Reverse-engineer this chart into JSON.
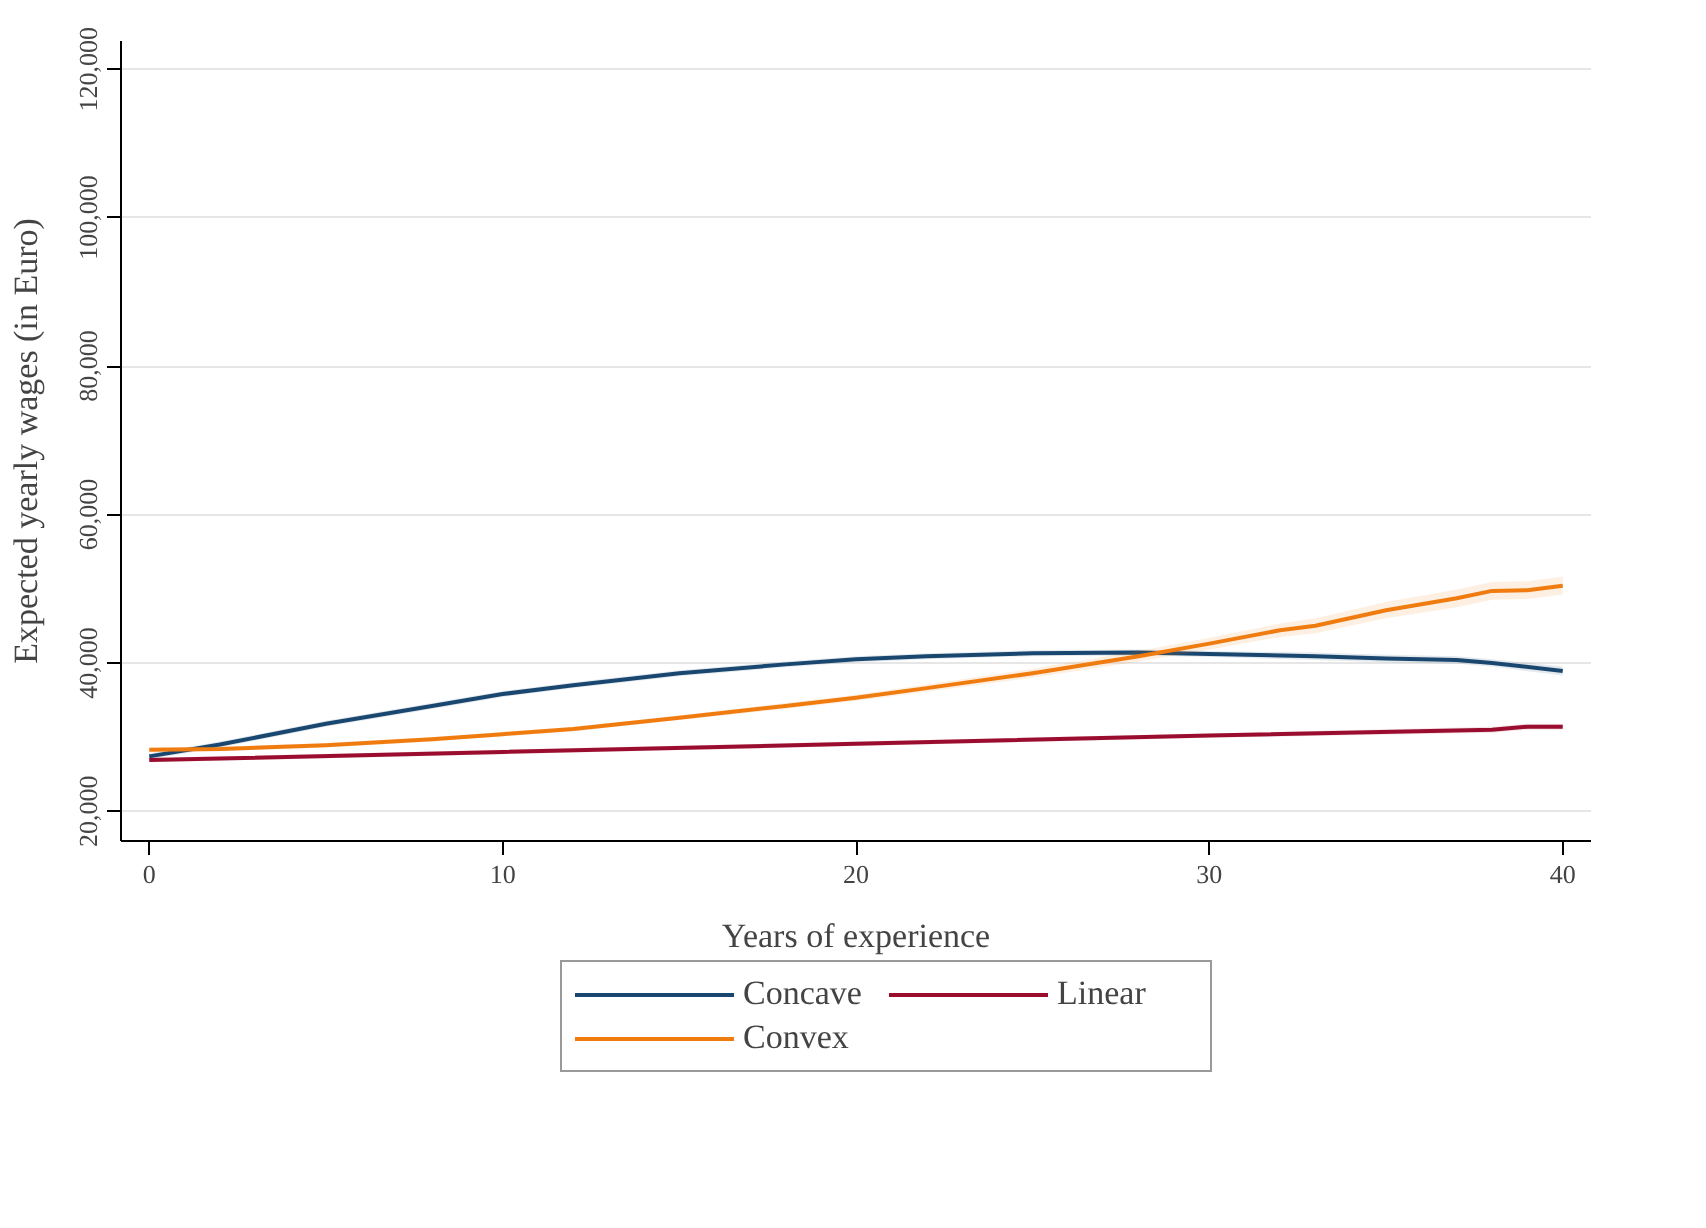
{
  "chart_data": {
    "type": "line",
    "xlabel": "Years of experience",
    "ylabel": "Expected yearly wages (in Euro)",
    "xlim": [
      -0.8,
      40.8
    ],
    "xticks": [
      0,
      10,
      20,
      30,
      40
    ],
    "ylim": [
      16000,
      123800
    ],
    "yticks": [
      {
        "value": 20000,
        "label": "20,000"
      },
      {
        "value": 40000,
        "label": "40,000"
      },
      {
        "value": 60000,
        "label": "60,000"
      },
      {
        "value": 80000,
        "label": "80,000"
      },
      {
        "value": 100000,
        "label": "100,000"
      },
      {
        "value": 120000,
        "label": "120,000"
      }
    ],
    "grid": "y",
    "legend": "bottom",
    "line_style": "solid",
    "marker": "none",
    "series": [
      {
        "name": "Concave",
        "color": "#1a476f",
        "x": [
          0,
          2,
          5,
          8,
          10,
          12,
          15,
          18,
          20,
          22,
          25,
          28,
          30,
          33,
          35,
          37,
          38,
          40
        ],
        "values": [
          27400,
          29000,
          31800,
          34200,
          35800,
          37000,
          38600,
          39800,
          40500,
          40900,
          41300,
          41400,
          41200,
          40900,
          40600,
          40400,
          40000,
          38900
        ],
        "lower": [
          27000,
          28600,
          31400,
          33800,
          35400,
          36600,
          38200,
          39400,
          40100,
          40500,
          40900,
          41000,
          40800,
          40400,
          40100,
          39900,
          39500,
          38300
        ],
        "upper": [
          27800,
          29400,
          32200,
          34600,
          36200,
          37400,
          39000,
          40200,
          40900,
          41300,
          41700,
          41800,
          41600,
          41400,
          41100,
          40900,
          40500,
          39500
        ]
      },
      {
        "name": "Convex",
        "color": "#f07c10",
        "x": [
          0,
          2,
          5,
          8,
          10,
          12,
          15,
          18,
          20,
          22,
          25,
          28,
          30,
          32,
          33,
          35,
          37,
          38,
          39,
          40
        ],
        "values": [
          28300,
          28400,
          28900,
          29700,
          30400,
          31100,
          32600,
          34200,
          35300,
          36600,
          38600,
          40900,
          42600,
          44400,
          45000,
          47100,
          48700,
          49700,
          49800,
          50400
        ],
        "lower": [
          28000,
          28100,
          28600,
          29400,
          30100,
          30800,
          32300,
          33800,
          34900,
          36100,
          38000,
          40200,
          41800,
          43500,
          44000,
          46000,
          47500,
          48500,
          48600,
          49200
        ],
        "upper": [
          28600,
          28700,
          29200,
          30000,
          30700,
          31400,
          32900,
          34600,
          35700,
          37100,
          39200,
          41600,
          43400,
          45300,
          46000,
          48200,
          49900,
          50900,
          51000,
          51600
        ]
      },
      {
        "name": "Linear",
        "color": "#9b0d2e",
        "x": [
          0,
          10,
          20,
          30,
          38,
          39,
          40
        ],
        "values": [
          26900,
          28000,
          29100,
          30200,
          31000,
          31400,
          31400
        ],
        "lower": [
          26600,
          27700,
          28800,
          29900,
          30600,
          31000,
          31000
        ],
        "upper": [
          27200,
          28300,
          29400,
          30500,
          31400,
          31800,
          31800
        ]
      }
    ]
  }
}
